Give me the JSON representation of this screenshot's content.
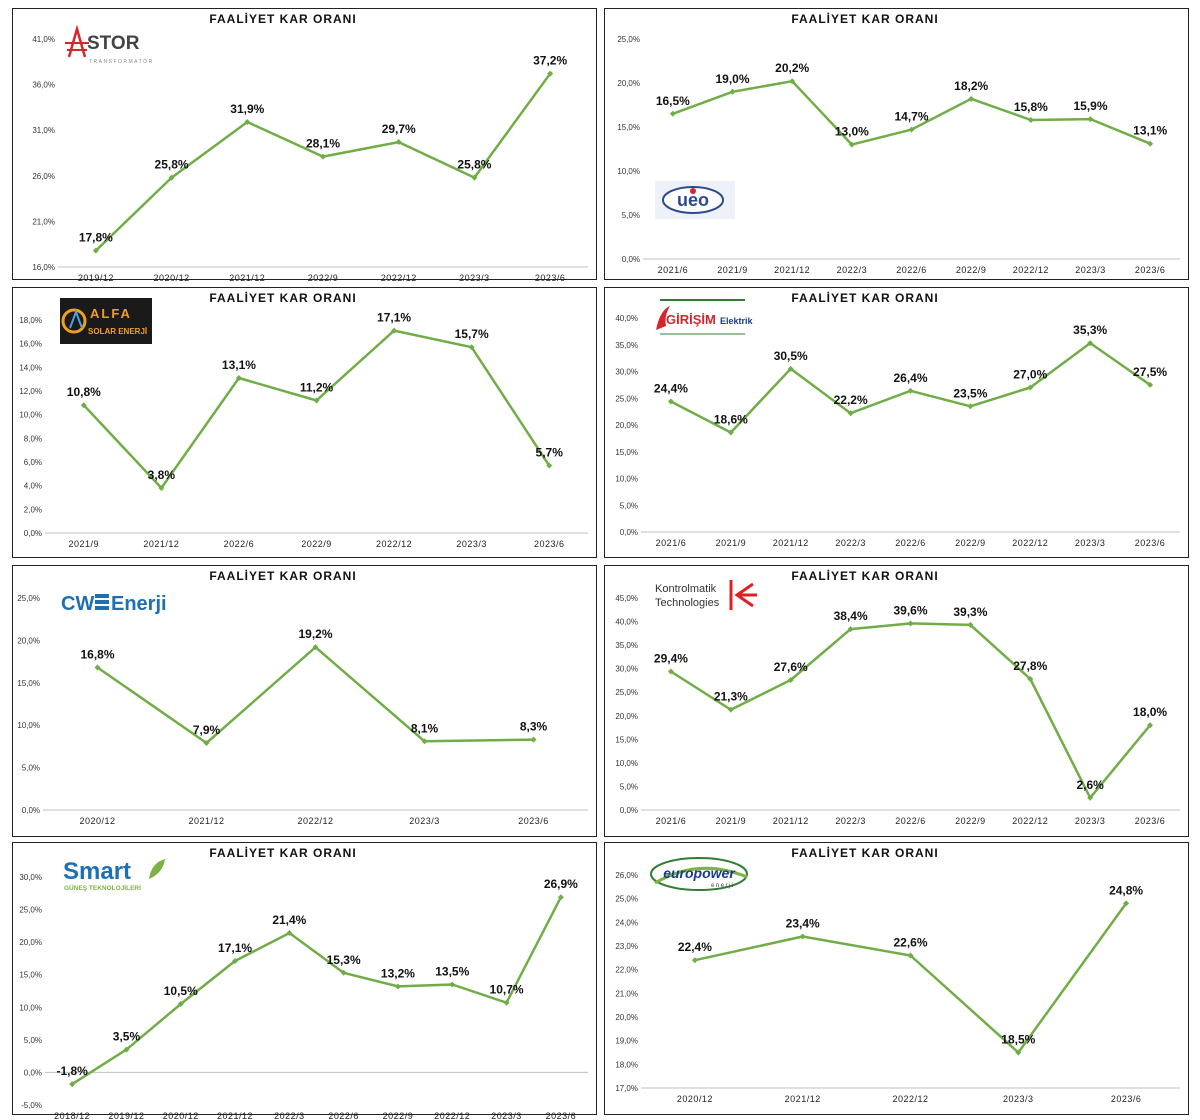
{
  "colors": {
    "line": "#70ad47",
    "border": "#222222",
    "grid_axis": "#bfbfbf"
  },
  "chart_data": [
    {
      "type": "line",
      "title": "FAALİYET KAR ORANI",
      "logo": {
        "name": "astor-logo",
        "text": "ASTOR",
        "sub": "TRANSFORMATÖR"
      },
      "categories": [
        "2019/12",
        "2020/12",
        "2021/12",
        "2022/9",
        "2022/12",
        "2023/3",
        "2023/6"
      ],
      "values": [
        17.8,
        25.8,
        31.9,
        28.1,
        29.7,
        25.8,
        37.2
      ],
      "labels": [
        "17,8%",
        "25,8%",
        "31,9%",
        "28,1%",
        "29,7%",
        "25,8%",
        "37,2%"
      ],
      "yticks": [
        "16,0%",
        "21,0%",
        "26,0%",
        "31,0%",
        "36,0%",
        "41,0%"
      ],
      "ylim": [
        16,
        41
      ],
      "grid": false
    },
    {
      "type": "line",
      "title": "FAALİYET KAR ORANI",
      "logo": {
        "name": "ueo-logo",
        "text": "ueo"
      },
      "categories": [
        "2021/6",
        "2021/9",
        "2021/12",
        "2022/3",
        "2022/6",
        "2022/9",
        "2022/12",
        "2023/3",
        "2023/6"
      ],
      "values": [
        16.5,
        19.0,
        20.2,
        13.0,
        14.7,
        18.2,
        15.8,
        15.9,
        13.1
      ],
      "labels": [
        "16,5%",
        "19,0%",
        "20,2%",
        "13,0%",
        "14,7%",
        "18,2%",
        "15,8%",
        "15,9%",
        "13,1%"
      ],
      "yticks": [
        "0,0%",
        "5,0%",
        "10,0%",
        "15,0%",
        "20,0%",
        "25,0%"
      ],
      "ylim": [
        0,
        25
      ],
      "grid": false
    },
    {
      "type": "line",
      "title": "FAALİYET KAR ORANI",
      "logo": {
        "name": "alfa-solar-logo",
        "text": "ALFA",
        "sub": "SOLAR ENERJİ"
      },
      "categories": [
        "2021/9",
        "2021/12",
        "2022/6",
        "2022/9",
        "2022/12",
        "2023/3",
        "2023/6"
      ],
      "values": [
        10.8,
        3.8,
        13.1,
        11.2,
        17.1,
        15.7,
        5.7
      ],
      "labels": [
        "10,8%",
        "3,8%",
        "13,1%",
        "11,2%",
        "17,1%",
        "15,7%",
        "5,7%"
      ],
      "yticks": [
        "0,0%",
        "2,0%",
        "4,0%",
        "6,0%",
        "8,0%",
        "10,0%",
        "12,0%",
        "14,0%",
        "16,0%",
        "18,0%"
      ],
      "ylim": [
        0,
        18
      ],
      "grid": false
    },
    {
      "type": "line",
      "title": "FAALİYET KAR ORANI",
      "logo": {
        "name": "girisim-logo",
        "text": "GİRİŞİM",
        "sub": "Elektrik"
      },
      "categories": [
        "2021/6",
        "2021/9",
        "2021/12",
        "2022/3",
        "2022/6",
        "2022/9",
        "2022/12",
        "2023/3",
        "2023/6"
      ],
      "values": [
        24.4,
        18.6,
        30.5,
        22.2,
        26.4,
        23.5,
        27.0,
        35.3,
        27.5
      ],
      "labels": [
        "24,4%",
        "18,6%",
        "30,5%",
        "22,2%",
        "26,4%",
        "23,5%",
        "27,0%",
        "35,3%",
        "27,5%"
      ],
      "yticks": [
        "0,0%",
        "5,0%",
        "10,0%",
        "15,0%",
        "20,0%",
        "25,0%",
        "30,0%",
        "35,0%",
        "40,0%"
      ],
      "ylim": [
        0,
        40
      ],
      "grid": false
    },
    {
      "type": "line",
      "title": "FAALİYET KAR ORANI",
      "logo": {
        "name": "cw-enerji-logo",
        "text": "CW",
        "sub": "Enerji"
      },
      "categories": [
        "2020/12",
        "2021/12",
        "2022/12",
        "2023/3",
        "2023/6"
      ],
      "values": [
        16.8,
        7.9,
        19.2,
        8.1,
        8.3
      ],
      "labels": [
        "16,8%",
        "7,9%",
        "19,2%",
        "8,1%",
        "8,3%"
      ],
      "yticks": [
        "0,0%",
        "5,0%",
        "10,0%",
        "15,0%",
        "20,0%",
        "25,0%"
      ],
      "ylim": [
        0,
        25
      ],
      "grid": false
    },
    {
      "type": "line",
      "title": "FAALİYET KAR ORANI",
      "logo": {
        "name": "kontrolmatik-logo",
        "text": "Kontrolmatik",
        "sub": "Technologies"
      },
      "categories": [
        "2021/6",
        "2021/9",
        "2021/12",
        "2022/3",
        "2022/6",
        "2022/9",
        "2022/12",
        "2023/3",
        "2023/6"
      ],
      "values": [
        29.4,
        21.3,
        27.6,
        38.4,
        39.6,
        39.3,
        27.8,
        2.6,
        18.0
      ],
      "labels": [
        "29,4%",
        "21,3%",
        "27,6%",
        "38,4%",
        "39,6%",
        "39,3%",
        "27,8%",
        "2,6%",
        "18,0%"
      ],
      "yticks": [
        "0,0%",
        "5,0%",
        "10,0%",
        "15,0%",
        "20,0%",
        "25,0%",
        "30,0%",
        "35,0%",
        "40,0%",
        "45,0%"
      ],
      "ylim": [
        0,
        45
      ],
      "grid": false
    },
    {
      "type": "line",
      "title": "FAALİYET KAR ORANI",
      "logo": {
        "name": "smart-logo",
        "text": "Smart",
        "sub": "GÜNEŞ TEKNOLOJİLERİ"
      },
      "categories": [
        "2018/12",
        "2019/12",
        "2020/12",
        "2021/12",
        "2022/3",
        "2022/6",
        "2022/9",
        "2022/12",
        "2023/3",
        "2023/6"
      ],
      "values": [
        -1.8,
        3.5,
        10.5,
        17.1,
        21.4,
        15.3,
        13.2,
        13.5,
        10.7,
        26.9
      ],
      "labels": [
        "-1,8%",
        "3,5%",
        "10,5%",
        "17,1%",
        "21,4%",
        "15,3%",
        "13,2%",
        "13,5%",
        "10,7%",
        "26,9%"
      ],
      "yticks": [
        "-5,0%",
        "0,0%",
        "5,0%",
        "10,0%",
        "15,0%",
        "20,0%",
        "25,0%",
        "30,0%"
      ],
      "ylim": [
        -5,
        30
      ],
      "grid": false
    },
    {
      "type": "line",
      "title": "FAALİYET KAR ORANI",
      "logo": {
        "name": "europower-logo",
        "text": "europower",
        "sub": "enerji"
      },
      "categories": [
        "2020/12",
        "2021/12",
        "2022/12",
        "2023/3",
        "2023/6"
      ],
      "values": [
        22.4,
        23.4,
        22.6,
        18.5,
        24.8
      ],
      "labels": [
        "22,4%",
        "23,4%",
        "22,6%",
        "18,5%",
        "24,8%"
      ],
      "yticks": [
        "17,0%",
        "18,0%",
        "19,0%",
        "20,0%",
        "21,0%",
        "22,0%",
        "23,0%",
        "24,0%",
        "25,0%",
        "26,0%"
      ],
      "ylim": [
        17,
        26
      ],
      "grid": false
    }
  ]
}
